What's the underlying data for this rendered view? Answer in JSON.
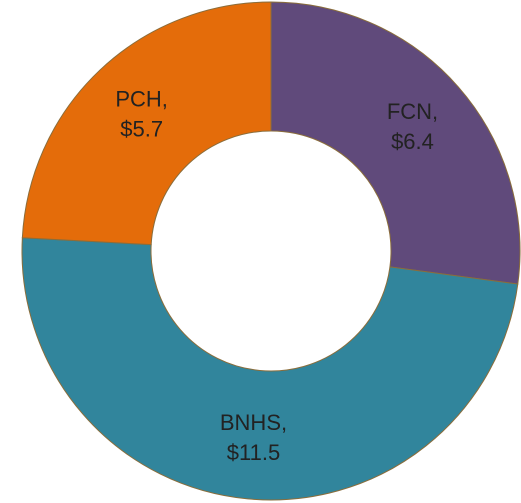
{
  "chart_data": {
    "type": "donut",
    "categories": [
      "FCN,",
      "BNHS,",
      "PCH,"
    ],
    "values": [
      6.4,
      11.5,
      5.7
    ],
    "value_labels": [
      "$6.4",
      "$11.5",
      "$5.7"
    ],
    "colors": [
      "#604a7b",
      "#31859c",
      "#e46c0a"
    ]
  }
}
